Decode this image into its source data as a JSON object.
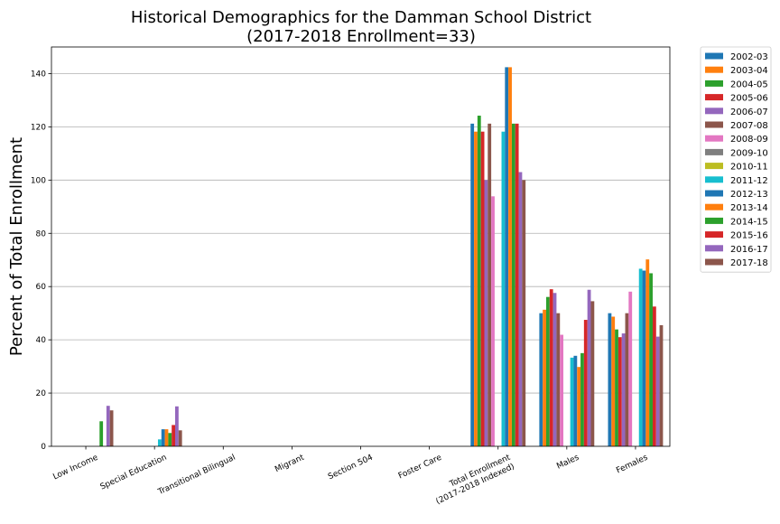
{
  "chart_data": {
    "type": "bar",
    "title": "Historical Demographics for the Damman School District",
    "subtitle": "(2017-2018 Enrollment=33)",
    "xlabel": "",
    "ylabel": "Percent of Total Enrollment",
    "ylim": [
      0,
      150
    ],
    "yticks": [
      0,
      20,
      40,
      60,
      80,
      100,
      120,
      140
    ],
    "grid": "y",
    "legend_position": "outside-top-right",
    "categories": [
      "Low Income",
      "Special Education",
      "Transitional Bilingual",
      "Migrant",
      "Section 504",
      "Foster Care",
      "Total Enrollment\n(2017-2018 Indexed)",
      "Males",
      "Females"
    ],
    "series": [
      {
        "name": "2002-03",
        "color": "#1f77b4",
        "values": [
          0,
          0,
          0,
          0,
          0,
          0,
          121.2,
          50.0,
          50.0
        ]
      },
      {
        "name": "2003-04",
        "color": "#ff7f0e",
        "values": [
          0,
          0,
          0,
          0,
          0,
          0,
          118.2,
          51.3,
          48.7
        ]
      },
      {
        "name": "2004-05",
        "color": "#2ca02c",
        "values": [
          0,
          0,
          0,
          0,
          0,
          0,
          124.2,
          56.1,
          43.9
        ]
      },
      {
        "name": "2005-06",
        "color": "#d62728",
        "values": [
          0,
          0,
          0,
          0,
          0,
          0,
          118.2,
          59.0,
          41.0
        ]
      },
      {
        "name": "2006-07",
        "color": "#9467bd",
        "values": [
          0,
          0,
          0,
          0,
          0,
          0,
          100.0,
          57.6,
          42.4
        ]
      },
      {
        "name": "2007-08",
        "color": "#8c564b",
        "values": [
          0,
          0,
          0,
          0,
          0,
          0,
          121.2,
          50.0,
          50.0
        ]
      },
      {
        "name": "2008-09",
        "color": "#e377c2",
        "values": [
          0,
          0,
          0,
          0,
          0,
          0,
          93.9,
          41.9,
          58.1
        ]
      },
      {
        "name": "2009-10",
        "color": "#7f7f7f",
        "values": [
          0,
          0,
          0,
          0,
          0,
          0,
          0,
          0,
          0
        ]
      },
      {
        "name": "2010-11",
        "color": "#bcbd22",
        "values": [
          0,
          0,
          0,
          0,
          0,
          0,
          0,
          0,
          0
        ]
      },
      {
        "name": "2011-12",
        "color": "#17becf",
        "values": [
          0,
          2.6,
          0,
          0,
          0,
          0,
          118.2,
          33.3,
          66.7
        ]
      },
      {
        "name": "2012-13",
        "color": "#1f77b4",
        "values": [
          0,
          6.4,
          0,
          0,
          0,
          0,
          142.4,
          34.0,
          66.0
        ]
      },
      {
        "name": "2013-14",
        "color": "#ff7f0e",
        "values": [
          0,
          6.4,
          0,
          0,
          0,
          0,
          142.4,
          29.8,
          70.2
        ]
      },
      {
        "name": "2014-15",
        "color": "#2ca02c",
        "values": [
          9.4,
          5.0,
          0,
          0,
          0,
          0,
          121.2,
          35.0,
          65.0
        ]
      },
      {
        "name": "2015-16",
        "color": "#d62728",
        "values": [
          0,
          8.0,
          0,
          0,
          0,
          0,
          121.2,
          47.5,
          52.5
        ]
      },
      {
        "name": "2016-17",
        "color": "#9467bd",
        "values": [
          15.2,
          15.0,
          0,
          0,
          0,
          0,
          103.0,
          58.8,
          41.2
        ]
      },
      {
        "name": "2017-18",
        "color": "#8c564b",
        "values": [
          13.5,
          6.0,
          0,
          0,
          0,
          0,
          100.0,
          54.5,
          45.5
        ]
      }
    ]
  }
}
